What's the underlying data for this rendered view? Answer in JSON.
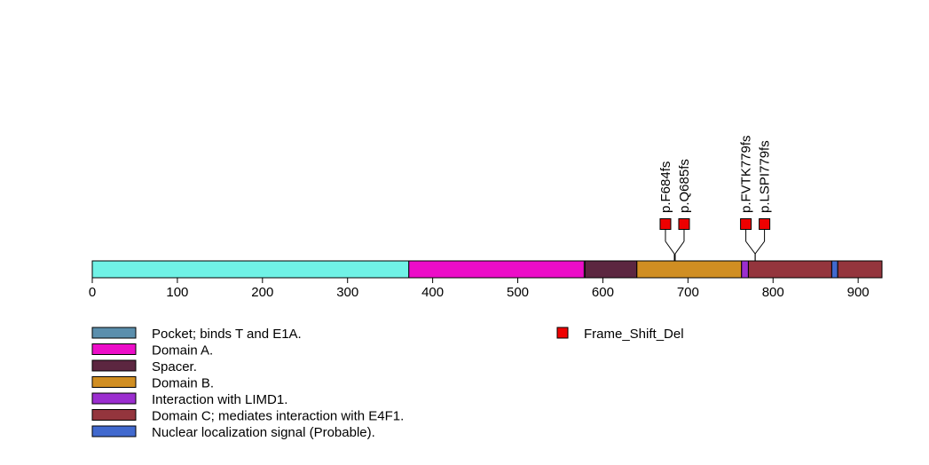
{
  "chart_data": {
    "type": "protein-lollipop",
    "protein_length": 928,
    "axis": {
      "ticks": [
        0,
        100,
        200,
        300,
        400,
        500,
        600,
        700,
        800,
        900
      ],
      "range": [
        0,
        928
      ]
    },
    "domains": [
      {
        "name": "Pocket; binds T and E1A.",
        "start": 0,
        "end": 372,
        "color": "#70F2E6",
        "legend_color": "#5B8FAD"
      },
      {
        "name": "Domain A.",
        "start": 372,
        "end": 578,
        "color": "#EC0DC8",
        "legend_color": "#EC0DC8"
      },
      {
        "name": "Spacer.",
        "start": 579,
        "end": 640,
        "color": "#5C2640",
        "legend_color": "#5C2640"
      },
      {
        "name": "Domain B.",
        "start": 640,
        "end": 763,
        "color": "#D08E22",
        "legend_color": "#D08E22"
      },
      {
        "name": "Interaction with LIMD1.",
        "start": 763,
        "end": 771,
        "color": "#9B2ECF",
        "legend_color": "#9B2ECF"
      },
      {
        "name": "Domain C; mediates interaction with E4F1.",
        "start": 771,
        "end": 869,
        "color": "#94353D",
        "legend_color": "#94353D"
      },
      {
        "name": "Nuclear localization signal (Probable).",
        "start": 869,
        "end": 876,
        "color": "#4169CE",
        "legend_color": "#4169CE"
      },
      {
        "name": "",
        "start": 876,
        "end": 928,
        "color": "#94353D",
        "legend_color": ""
      }
    ],
    "mutations": [
      {
        "label": "p.F684fs",
        "position": 684,
        "type": "Frame_Shift_Del",
        "color": "#EE0000"
      },
      {
        "label": "p.Q685fs",
        "position": 685,
        "type": "Frame_Shift_Del",
        "color": "#EE0000"
      },
      {
        "label": "p.FVTK779fs",
        "position": 779,
        "type": "Frame_Shift_Del",
        "color": "#EE0000"
      },
      {
        "label": "p.LSPI779fs",
        "position": 779,
        "type": "Frame_Shift_Del",
        "color": "#EE0000"
      }
    ],
    "mutation_legend": [
      {
        "name": "Frame_Shift_Del",
        "color": "#EE0000"
      }
    ]
  }
}
